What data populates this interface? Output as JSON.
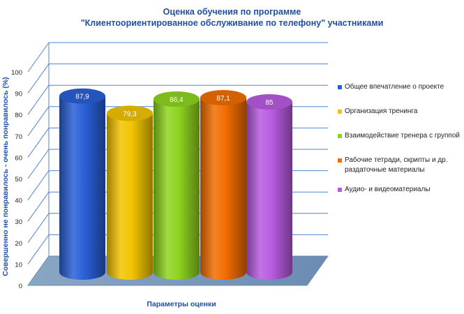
{
  "chart_data": {
    "type": "bar",
    "title": "Оценка обучения по программе",
    "subtitle": "\"Клиентоориентированное обслуживание  по телефону\"  участниками",
    "xlabel": "Параметры оценки",
    "ylabel": "Совершенно не понравилось - очень понравилось (%)",
    "ylim": [
      0,
      100
    ],
    "yticks": [
      0,
      10,
      20,
      30,
      40,
      50,
      60,
      70,
      80,
      90,
      100
    ],
    "grid": true,
    "legend_position": "right",
    "series": [
      {
        "name": "Общее впечатление о проекте",
        "value": 87.9,
        "label": "87,9",
        "color": "#2a5fd6"
      },
      {
        "name": "Организация тренинга",
        "value": 79.3,
        "label": "79,3",
        "color": "#f2c400"
      },
      {
        "name": "Взаимодействие тренера с группой",
        "value": 86.4,
        "label": "86,4",
        "color": "#8ed31f"
      },
      {
        "name": "Рабочие тетради, скрипты и др. раздаточные материалы",
        "value": 87.1,
        "label": "87,1",
        "color": "#f26d00"
      },
      {
        "name": "Аудио- и видеоматериалы",
        "value": 85,
        "label": "85",
        "color": "#b85be0"
      }
    ]
  },
  "legend_text": [
    [
      "Общее впечатление о проекте"
    ],
    [
      "Организация тренинга"
    ],
    [
      "Взаимодействие тренера с группой"
    ],
    [
      "Рабочие тетради, скрипты и др.",
      "раздаточные материалы"
    ],
    [
      "Аудио- и видеоматериалы"
    ]
  ]
}
